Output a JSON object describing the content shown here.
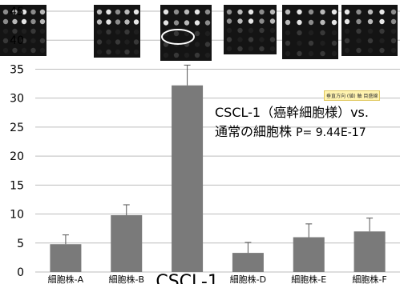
{
  "chart_data": {
    "type": "bar",
    "categories": [
      "細胞株-A",
      "細胞株-B",
      "CSCL-1",
      "細胞株-D",
      "細胞株-E",
      "細胞株-F"
    ],
    "values": [
      4.8,
      9.8,
      32.2,
      3.3,
      6.0,
      7.0
    ],
    "error": [
      1.6,
      1.8,
      3.5,
      1.8,
      2.3,
      2.3
    ],
    "yticks": [
      "0",
      "5",
      "10",
      "15",
      "20",
      "25",
      "30",
      "35",
      "40",
      "45"
    ],
    "ylim": [
      0,
      45
    ],
    "grid": true,
    "bar_color": "#7a7a7a",
    "annotation_line1": "CSCL-1（癌幹細胞様）vs.",
    "annotation_line2": "通常の細胞株",
    "annotation_pvalue": "P= 9.44E-17",
    "tooltip": "垂直方向 (値) 軸 目盛線"
  }
}
